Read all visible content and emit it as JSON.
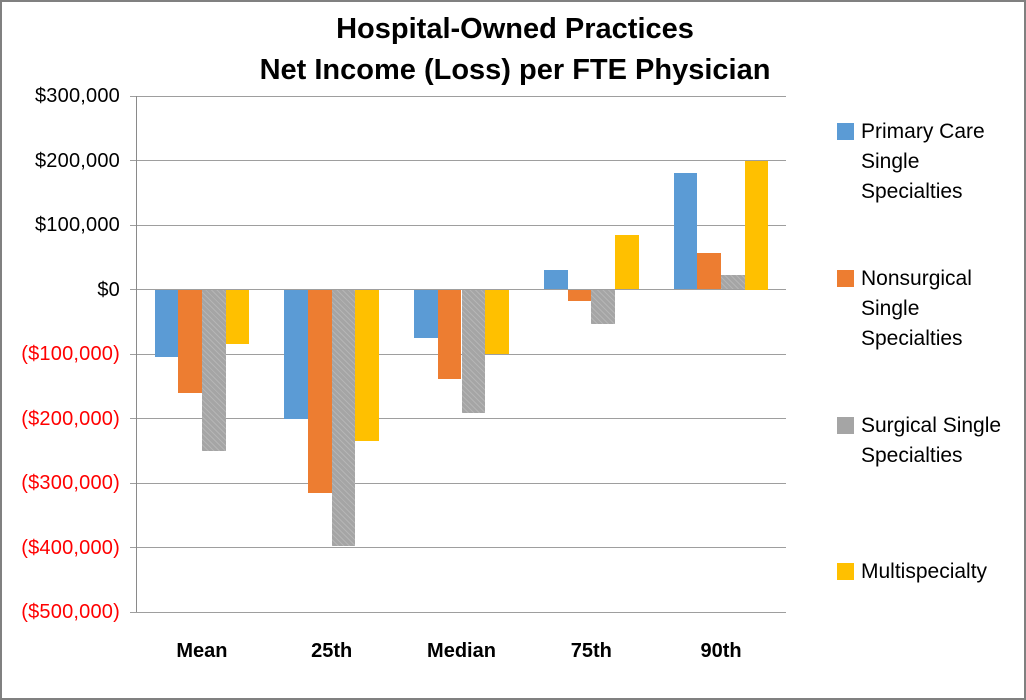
{
  "title_line1": "Hospital-Owned Practices",
  "title_line2": "Net Income (Loss) per FTE Physician",
  "chart_data": {
    "type": "bar",
    "title": "Hospital-Owned Practices Net Income (Loss) per FTE Physician",
    "categories": [
      "Mean",
      "25th",
      "Median",
      "75th",
      "90th"
    ],
    "series": [
      {
        "name": "Primary Care Single Specialties",
        "color": "#5B9BD5",
        "values": [
          -105000,
          -200000,
          -75000,
          30000,
          180000
        ]
      },
      {
        "name": "Nonsurgical Single Specialties",
        "color": "#ED7D31",
        "values": [
          -160000,
          -315000,
          -138000,
          -18000,
          56000
        ]
      },
      {
        "name": "Surgical Single Specialties",
        "color": "#A5A5A5",
        "values": [
          -250000,
          -397000,
          -192000,
          -53000,
          23000
        ]
      },
      {
        "name": "Multispecialty",
        "color": "#FFC000",
        "values": [
          -85000,
          -235000,
          -100000,
          85000,
          200000
        ]
      }
    ],
    "xlabel": "",
    "ylabel": "",
    "ylim": [
      -500000,
      300000
    ],
    "ytick_step": 100000,
    "ytick_labels": [
      "$300,000",
      "$200,000",
      "$100,000",
      "$0",
      "($100,000)",
      "($200,000)",
      "($300,000)",
      "($400,000)",
      "($500,000)"
    ],
    "positive_label_color": "#000000",
    "negative_label_color": "#FF0000",
    "gridline_color": "#9E9E9E",
    "grid": true,
    "legend_position": "right"
  }
}
